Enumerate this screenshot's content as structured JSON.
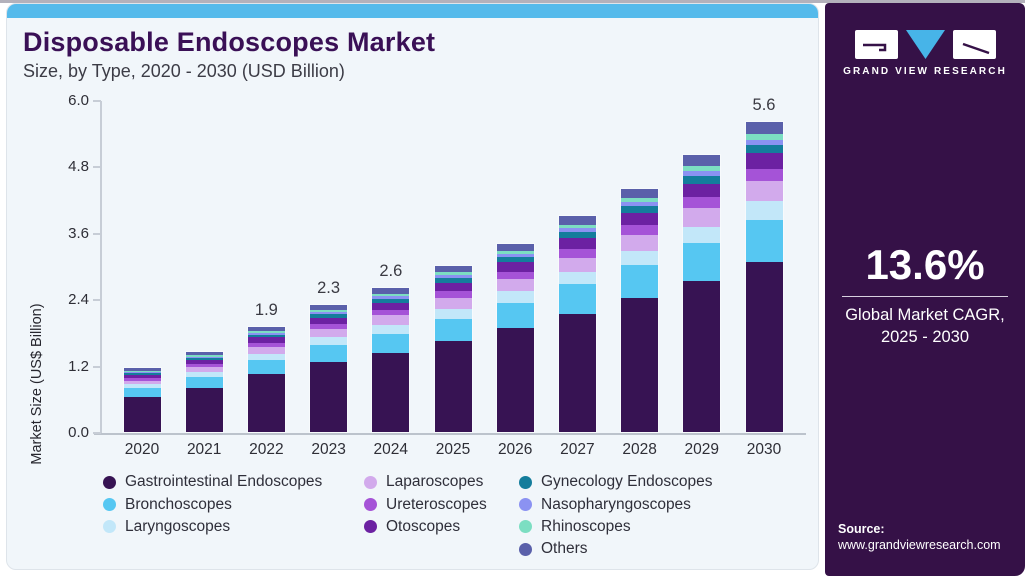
{
  "header": {
    "title": "Disposable Endoscopes Market",
    "subtitle": "Size, by Type, 2020 - 2030 (USD Billion)"
  },
  "chart_data": {
    "type": "bar",
    "stacked": true,
    "title": "Disposable Endoscopes Market Size, by Type, 2020 - 2030 (USD Billion)",
    "xlabel": "",
    "ylabel": "Market Size (US$ Billion)",
    "ylim": [
      0,
      6
    ],
    "yticks": [
      "0.0",
      "1.2",
      "2.4",
      "3.6",
      "4.8",
      "6.0"
    ],
    "grid": false,
    "legend_position": "bottom",
    "categories": [
      "2020",
      "2021",
      "2022",
      "2023",
      "2024",
      "2025",
      "2026",
      "2027",
      "2028",
      "2029",
      "2030"
    ],
    "totals": [
      1.15,
      1.45,
      1.9,
      2.3,
      2.6,
      3.0,
      3.4,
      3.9,
      4.4,
      5.0,
      5.6
    ],
    "bar_value_labels": [
      "",
      "",
      "1.9",
      "2.3",
      "2.6",
      "",
      "",
      "",
      "",
      "",
      "5.6"
    ],
    "series": [
      {
        "name": "Gastrointestinal Endoscopes",
        "color": "#371353",
        "values": [
          0.63,
          0.79,
          1.04,
          1.26,
          1.43,
          1.64,
          1.88,
          2.14,
          2.42,
          2.73,
          3.08
        ]
      },
      {
        "name": "Bronchoscopes",
        "color": "#56C7F2",
        "values": [
          0.16,
          0.2,
          0.26,
          0.31,
          0.35,
          0.41,
          0.46,
          0.53,
          0.59,
          0.68,
          0.76
        ]
      },
      {
        "name": "Laryngoscopes",
        "color": "#C2E7F9",
        "values": [
          0.07,
          0.09,
          0.11,
          0.14,
          0.16,
          0.18,
          0.2,
          0.23,
          0.26,
          0.3,
          0.34
        ]
      },
      {
        "name": "Laparoscopes",
        "color": "#D2AAEC",
        "values": [
          0.07,
          0.09,
          0.12,
          0.15,
          0.17,
          0.2,
          0.22,
          0.25,
          0.29,
          0.33,
          0.36
        ]
      },
      {
        "name": "Ureteroscopes",
        "color": "#A553D7",
        "values": [
          0.05,
          0.06,
          0.08,
          0.09,
          0.1,
          0.12,
          0.14,
          0.16,
          0.18,
          0.2,
          0.22
        ]
      },
      {
        "name": "Otoscopes",
        "color": "#6C21A2",
        "values": [
          0.06,
          0.07,
          0.1,
          0.12,
          0.13,
          0.15,
          0.17,
          0.2,
          0.22,
          0.25,
          0.28
        ]
      },
      {
        "name": "Gynecology Endoscopes",
        "color": "#147D9C",
        "values": [
          0.03,
          0.04,
          0.05,
          0.06,
          0.07,
          0.08,
          0.09,
          0.11,
          0.12,
          0.14,
          0.15
        ]
      },
      {
        "name": "Nasopharyngoscopes",
        "color": "#8B92F2",
        "values": [
          0.02,
          0.02,
          0.03,
          0.04,
          0.04,
          0.05,
          0.05,
          0.06,
          0.07,
          0.08,
          0.09
        ]
      },
      {
        "name": "Rhinoscopes",
        "color": "#7CDEC2",
        "values": [
          0.02,
          0.03,
          0.04,
          0.04,
          0.05,
          0.06,
          0.06,
          0.07,
          0.08,
          0.1,
          0.11
        ]
      },
      {
        "name": "Others",
        "color": "#5A60AA",
        "values": [
          0.04,
          0.06,
          0.07,
          0.09,
          0.1,
          0.11,
          0.13,
          0.15,
          0.17,
          0.19,
          0.21
        ]
      }
    ],
    "legend_columns": [
      3,
      3,
      4
    ]
  },
  "sidebar": {
    "logo_name": "grand-view-research-logo",
    "logo_text": "GRAND VIEW RESEARCH",
    "cagr_value": "13.6%",
    "cagr_line1": "Global Market CAGR,",
    "cagr_line2": "2025 - 2030",
    "source_label": "Source:",
    "source_url": "www.grandviewresearch.com",
    "colors": {
      "background": "#351147",
      "accent_blue": "#47B4E8"
    }
  },
  "theme": {
    "card_background": "#F1F6FA",
    "accent_strip": "#55BAEB",
    "title_color": "#3A1056"
  }
}
